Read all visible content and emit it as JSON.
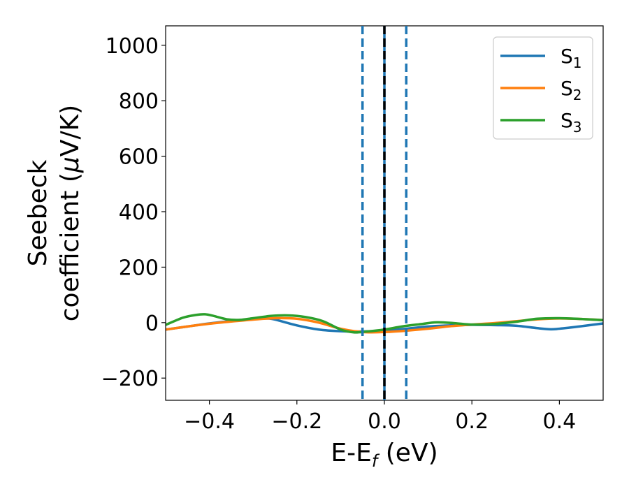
{
  "chart_data": {
    "type": "line",
    "xlabel_main": "E-E",
    "xlabel_sub": "f",
    "xlabel_unit": " (eV)",
    "ylabel_line1": "Seebeck",
    "ylabel_line2": "coefficient  (",
    "ylabel_mu": "μ",
    "ylabel_unit": "V/K)",
    "xlim": [
      -0.5,
      0.5
    ],
    "ylim": [
      -280,
      1070
    ],
    "x_ticks": [
      {
        "value": -0.4,
        "label": "−0.4"
      },
      {
        "value": -0.2,
        "label": "−0.2"
      },
      {
        "value": 0.0,
        "label": "0.0"
      },
      {
        "value": 0.2,
        "label": "0.2"
      },
      {
        "value": 0.4,
        "label": "0.4"
      }
    ],
    "y_ticks": [
      {
        "value": -200,
        "label": "−200"
      },
      {
        "value": 0,
        "label": "0"
      },
      {
        "value": 200,
        "label": "200"
      },
      {
        "value": 400,
        "label": "400"
      },
      {
        "value": 600,
        "label": "600"
      },
      {
        "value": 800,
        "label": "800"
      },
      {
        "value": 1000,
        "label": "1000"
      }
    ],
    "grid": false,
    "legend_position": "top-right",
    "vertical_lines": [
      {
        "x": -0.05,
        "style": "dashed",
        "color": "#1f77b4"
      },
      {
        "x": 0.05,
        "style": "dashed",
        "color": "#1f77b4"
      },
      {
        "x": 0.0,
        "style": "solid",
        "color": "#1f77b4"
      },
      {
        "x": 0.0,
        "style": "dashed",
        "color": "#000000"
      }
    ],
    "series": [
      {
        "name": "S",
        "subscript": "1",
        "color": "#1f77b4",
        "x": [
          -0.5,
          -0.45,
          -0.4,
          -0.35,
          -0.3,
          -0.27,
          -0.25,
          -0.2,
          -0.15,
          -0.1,
          -0.05,
          0.0,
          0.05,
          0.1,
          0.15,
          0.2,
          0.25,
          0.3,
          0.35,
          0.38,
          0.4,
          0.45,
          0.5
        ],
        "y": [
          -25,
          -14,
          -3,
          6,
          13,
          15,
          11,
          -10,
          -25,
          -31,
          -32,
          -29,
          -22,
          -14,
          -10,
          -8,
          -9,
          -11,
          -20,
          -24,
          -22,
          -13,
          -3
        ]
      },
      {
        "name": "S",
        "subscript": "2",
        "color": "#ff7f0e",
        "x": [
          -0.5,
          -0.45,
          -0.4,
          -0.35,
          -0.3,
          -0.25,
          -0.2,
          -0.15,
          -0.1,
          -0.05,
          0.0,
          0.05,
          0.1,
          0.15,
          0.2,
          0.25,
          0.3,
          0.35,
          0.4,
          0.45,
          0.5
        ],
        "y": [
          -25,
          -14,
          -4,
          4,
          11,
          16,
          14,
          0,
          -22,
          -34,
          -34,
          -29,
          -22,
          -13,
          -7,
          -2,
          5,
          12,
          15,
          13,
          9
        ]
      },
      {
        "name": "S",
        "subscript": "3",
        "color": "#2ca02c",
        "x": [
          -0.5,
          -0.46,
          -0.43,
          -0.41,
          -0.39,
          -0.36,
          -0.33,
          -0.3,
          -0.26,
          -0.22,
          -0.18,
          -0.14,
          -0.1,
          -0.07,
          -0.04,
          0.0,
          0.04,
          0.08,
          0.12,
          0.16,
          0.2,
          0.25,
          0.3,
          0.35,
          0.4,
          0.45,
          0.5
        ],
        "y": [
          -8,
          18,
          28,
          30,
          24,
          12,
          10,
          16,
          24,
          26,
          20,
          5,
          -25,
          -35,
          -32,
          -25,
          -14,
          -6,
          1,
          -2,
          -7,
          -5,
          3,
          14,
          16,
          13,
          9
        ]
      }
    ]
  }
}
